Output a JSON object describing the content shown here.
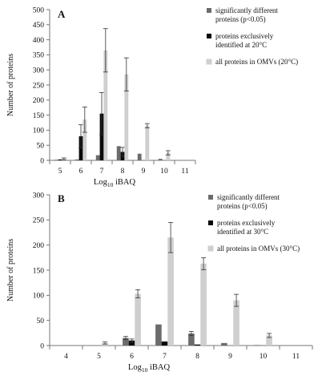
{
  "chart_data": [
    {
      "type": "bar",
      "panel_label": "A",
      "categories": [
        "5",
        "6",
        "7",
        "8",
        "9",
        "10",
        "11"
      ],
      "xlabel_base": "Log",
      "xlabel_sub": "10",
      "xlabel_rest": " iBAQ",
      "ylabel": "Number of proteins",
      "ylim": [
        0,
        500
      ],
      "yticks": [
        0,
        50,
        100,
        150,
        200,
        250,
        300,
        350,
        400,
        450,
        500
      ],
      "legend_position": "top-right",
      "series": [
        {
          "name": "significantly different proteins (p<0.05)",
          "legend_lines": [
            "significantly different",
            "proteins (p<0.05)"
          ],
          "color": "#6b6b6b",
          "values": [
            2,
            3,
            17,
            47,
            22,
            5,
            0
          ],
          "errors": [
            0,
            0,
            0,
            0,
            0,
            0,
            0
          ]
        },
        {
          "name": "proteins exclusively identified at 20°C",
          "legend_lines": [
            "proteins exclusively",
            "identified at 20°C"
          ],
          "color": "#0a0a0a",
          "values": [
            3,
            80,
            155,
            28,
            0,
            0,
            0
          ],
          "errors": [
            0,
            38,
            70,
            15,
            0,
            0,
            0
          ]
        },
        {
          "name": "all proteins in OMVs (20°C)",
          "legend_lines": [
            "all proteins in OMVs (20°C)"
          ],
          "color": "#cfcfcf",
          "values": [
            5,
            135,
            365,
            285,
            115,
            25,
            0
          ],
          "errors": [
            3,
            42,
            72,
            55,
            7,
            7,
            0
          ]
        }
      ]
    },
    {
      "type": "bar",
      "panel_label": "B",
      "categories": [
        "4",
        "5",
        "6",
        "7",
        "8",
        "9",
        "10",
        "11"
      ],
      "xlabel_base": "Log",
      "xlabel_sub": "10",
      "xlabel_rest": " iBAQ",
      "ylabel": "Number of proteins",
      "ylim": [
        0,
        300
      ],
      "yticks": [
        0,
        50,
        100,
        150,
        200,
        250,
        300
      ],
      "legend_position": "top-right",
      "series": [
        {
          "name": "significantly different proteins (p<0.05)",
          "legend_lines": [
            "significantly different",
            "proteins (p<0.05)"
          ],
          "color": "#6b6b6b",
          "values": [
            0,
            0,
            15,
            42,
            24,
            5,
            1,
            0
          ],
          "errors": [
            0,
            0,
            3,
            0,
            4,
            0,
            0,
            0
          ]
        },
        {
          "name": "proteins exclusively identified at 30°C",
          "legend_lines": [
            "proteins exclusively",
            "identified at 30°C"
          ],
          "color": "#0a0a0a",
          "values": [
            0,
            0,
            10,
            8,
            2,
            0,
            0,
            0
          ],
          "errors": [
            0,
            0,
            3,
            0,
            0,
            0,
            0,
            0
          ]
        },
        {
          "name": "all proteins in OMVs (30°C)",
          "legend_lines": [
            "all proteins in OMVs (30°C)"
          ],
          "color": "#cfcfcf",
          "values": [
            0,
            5,
            103,
            215,
            163,
            90,
            20,
            0
          ],
          "errors": [
            0,
            2,
            8,
            30,
            12,
            12,
            4,
            0
          ]
        }
      ]
    }
  ]
}
